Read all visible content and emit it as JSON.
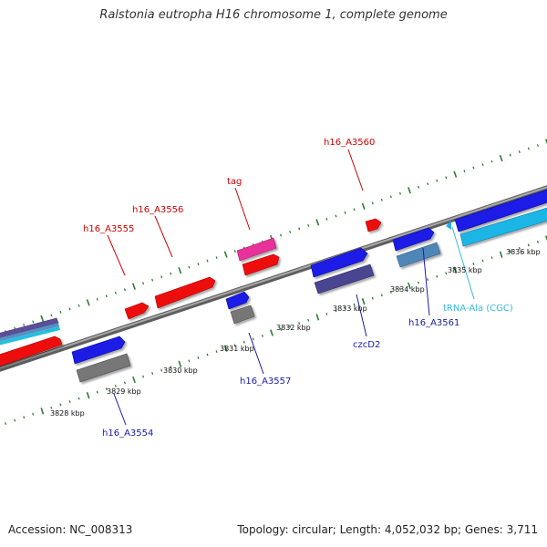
{
  "title": "Ralstonia eutropha H16 chromosome 1, complete genome",
  "footer": {
    "accession": "Accession: NC_008313",
    "summary": "Topology: circular; Length: 4,052,032 bp; Genes: 3,711"
  },
  "colors": {
    "backbone": "#808080",
    "tick": "#2e7d32",
    "upper_label": "#cc0000",
    "lower_label": "#1a1aaa",
    "trna_label": "#33bbdd",
    "red_gene": "#ee1111",
    "blue_gene": "#1a1ae6",
    "magenta_gene": "#e8339a",
    "gray_gene": "#777777",
    "steel_gene": "#4f86b8",
    "purple_gene": "#4a4491",
    "cyan_gene": "#1ab6e6"
  },
  "ruler": {
    "tick_labels": [
      "3828 kbp",
      "3829 kbp",
      "3830 kbp",
      "3831 kbp",
      "3832 kbp",
      "3833 kbp",
      "3834 kbp",
      "3835 kbp",
      "3836 kbp"
    ]
  },
  "gene_labels_upper": [
    "h16_A3555",
    "h16_A3556",
    "tag",
    "h16_A3560"
  ],
  "gene_labels_lower": [
    "h16_A3554",
    "h16_A3557",
    "czcD2",
    "h16_A3561",
    "tRNA-Ala (CGC)"
  ]
}
